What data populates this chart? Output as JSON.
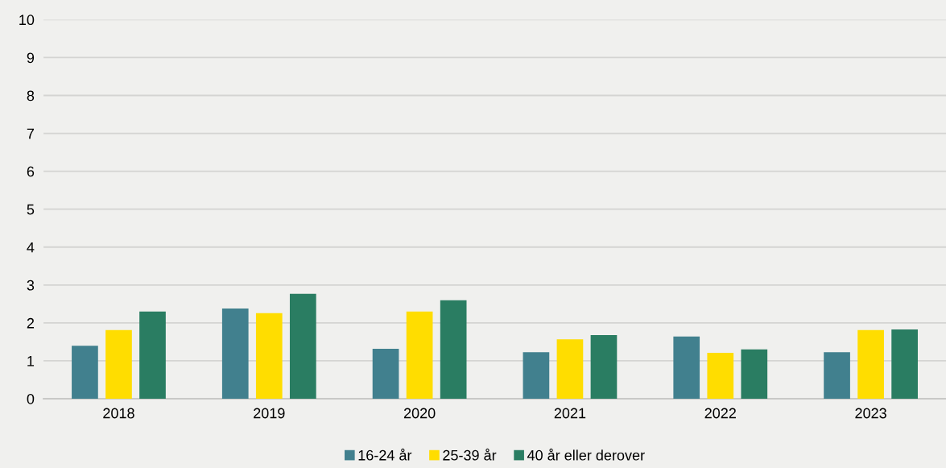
{
  "chart_data": {
    "type": "bar",
    "categories": [
      "2018",
      "2019",
      "2020",
      "2021",
      "2022",
      "2023"
    ],
    "series": [
      {
        "name": "16-24 år",
        "color": "#41808e",
        "values": [
          1.4,
          2.38,
          1.32,
          1.23,
          1.64,
          1.23
        ]
      },
      {
        "name": "25-39 år",
        "color": "#ffdd00",
        "values": [
          1.81,
          2.26,
          2.3,
          1.57,
          1.21,
          1.81
        ]
      },
      {
        "name": "40 år eller derover",
        "color": "#2a7d62",
        "values": [
          2.3,
          2.77,
          2.6,
          1.68,
          1.3,
          1.83
        ]
      }
    ],
    "ylim": [
      0,
      10
    ],
    "yticks": [
      0,
      1,
      2,
      3,
      4,
      5,
      6,
      7,
      8,
      9,
      10
    ],
    "grid": "y",
    "legend": "bottom"
  }
}
